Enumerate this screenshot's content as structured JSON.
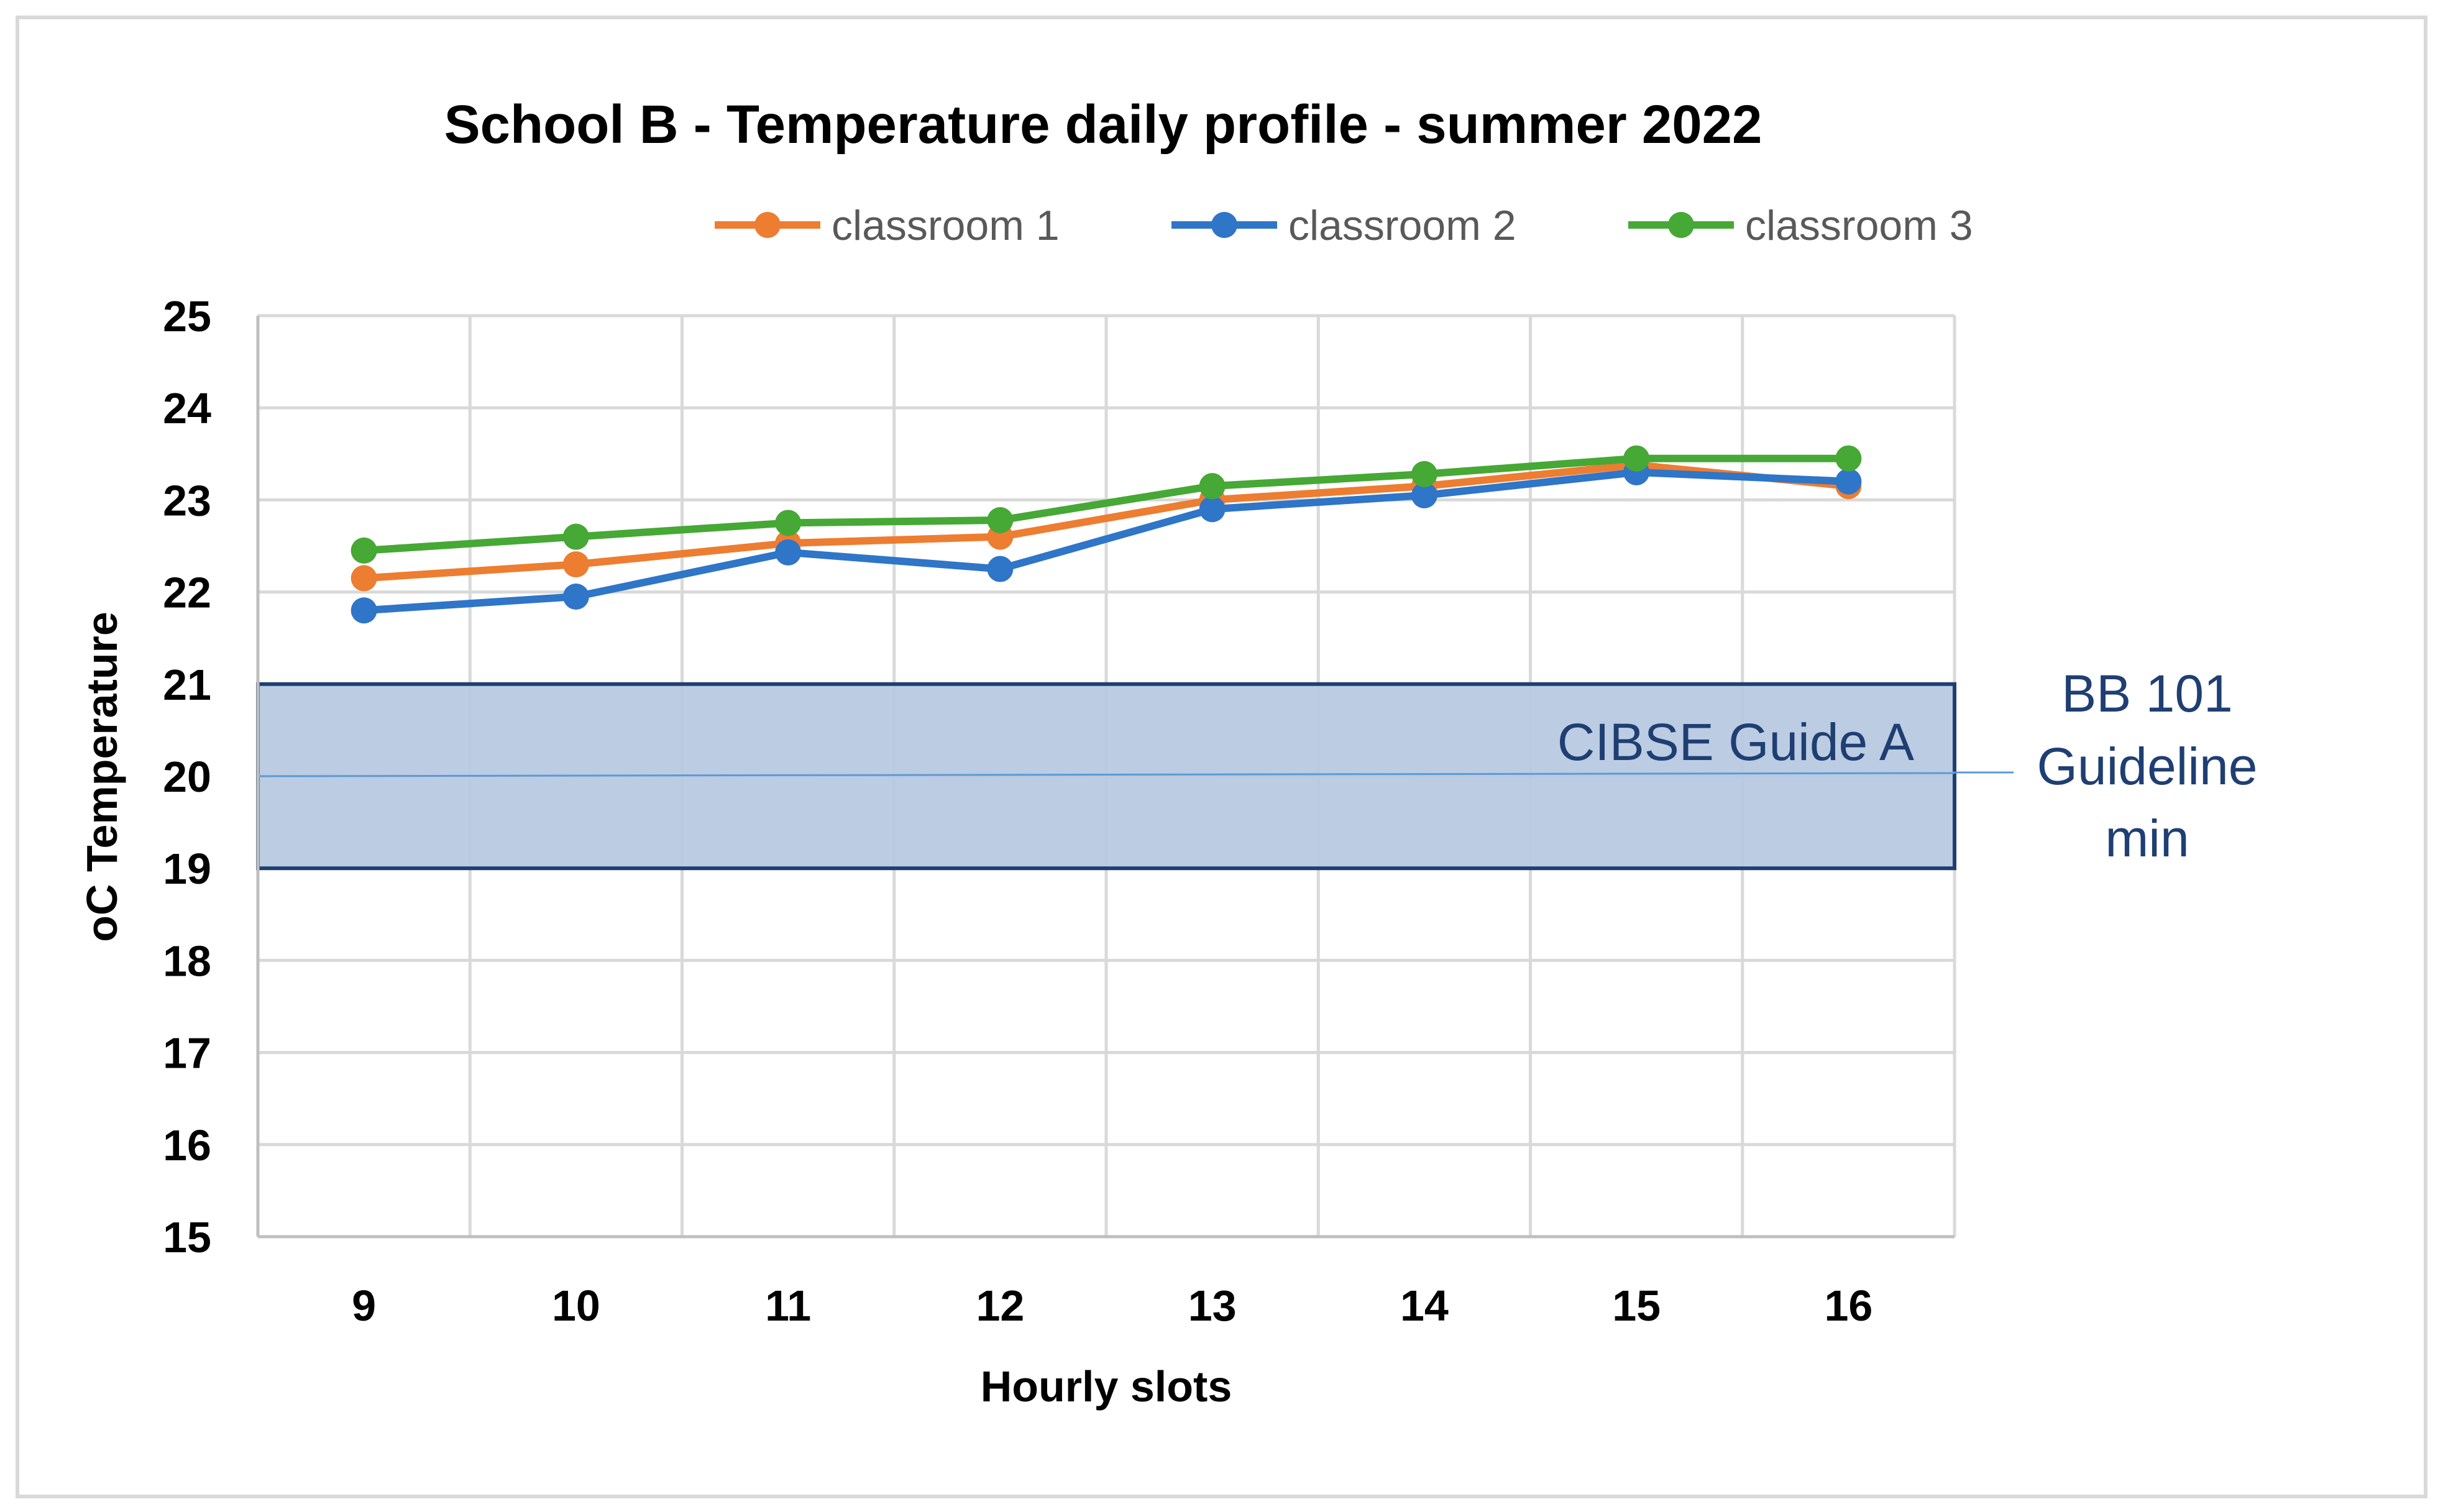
{
  "chart_data": {
    "type": "line",
    "title": "School B - Temperature daily profile - summer 2022",
    "xlabel": "Hourly slots",
    "ylabel": "oC Temperature",
    "categories": [
      "9",
      "10",
      "11",
      "12",
      "13",
      "14",
      "15",
      "16"
    ],
    "ylim": [
      15,
      25
    ],
    "yticks": [
      "15",
      "16",
      "17",
      "18",
      "19",
      "20",
      "21",
      "22",
      "23",
      "24",
      "25"
    ],
    "grid": true,
    "legend_position": "top",
    "series": [
      {
        "name": "classroom 1",
        "color": "#ed7d31",
        "values": [
          22.15,
          22.3,
          22.53,
          22.6,
          23.0,
          23.15,
          23.38,
          23.15
        ]
      },
      {
        "name": "classroom 2",
        "color": "#2f75c8",
        "values": [
          21.8,
          21.95,
          22.43,
          22.25,
          22.9,
          23.05,
          23.3,
          23.2
        ]
      },
      {
        "name": "classroom 3",
        "color": "#46a835",
        "values": [
          22.45,
          22.6,
          22.75,
          22.78,
          23.15,
          23.28,
          23.45,
          23.45
        ]
      }
    ],
    "band": {
      "label": "CIBSE Guide A",
      "y_min": 19,
      "y_max": 21,
      "reference_line": 20,
      "fill": "#b8c9e0",
      "stroke": "#1f3f73"
    },
    "side_annotation": [
      "BB 101",
      "Guideline",
      "min"
    ]
  }
}
